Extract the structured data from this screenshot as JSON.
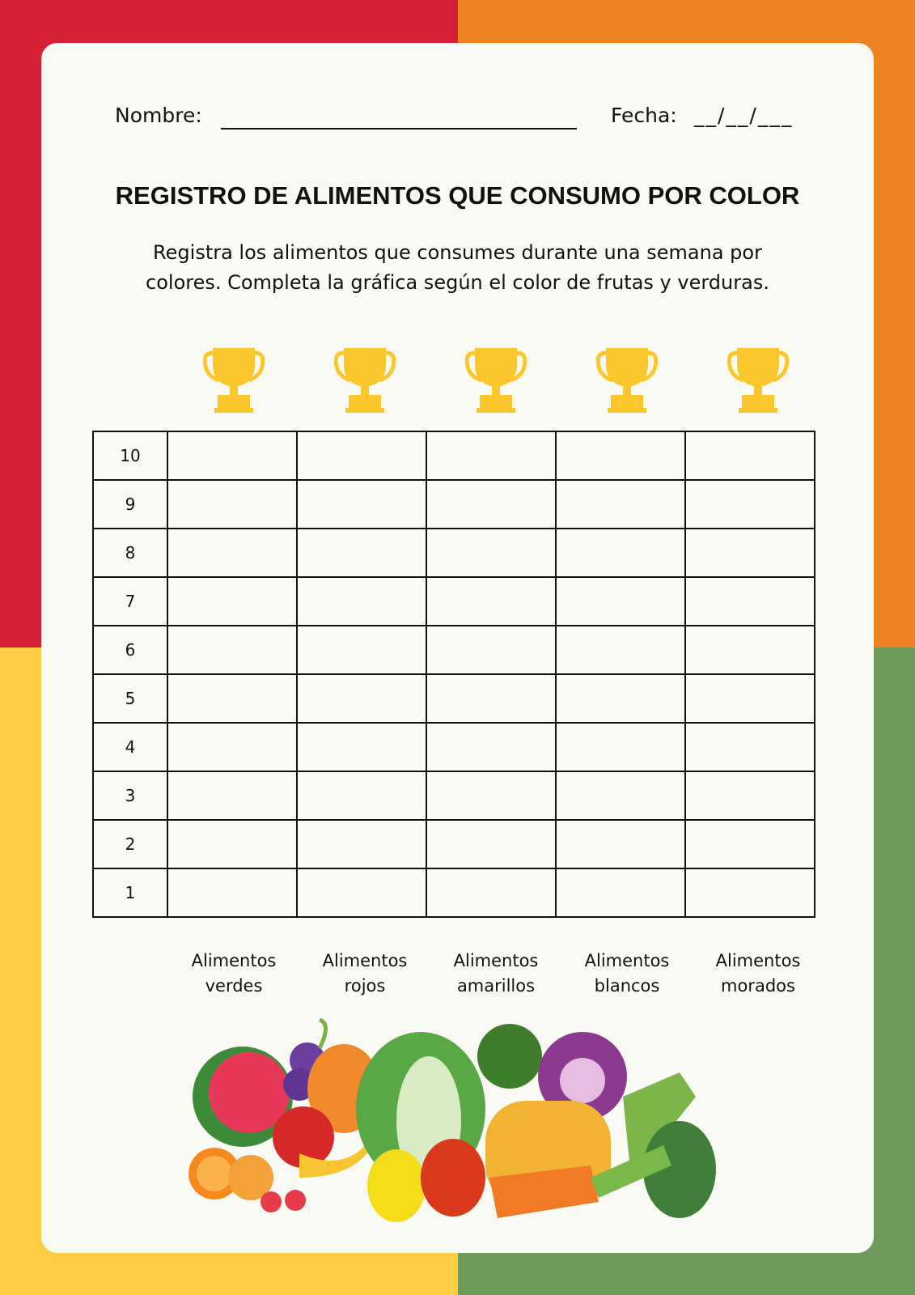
{
  "header": {
    "name_label": "Nombre:",
    "date_label": "Fecha:",
    "date_blank": "__/__/___"
  },
  "title": "REGISTRO DE ALIMENTOS QUE CONSUMO POR COLOR",
  "instructions": [
    "Registra los alimentos que consumes durante una semana por",
    "colores. Completa la gráfica según el color de frutas y verduras."
  ],
  "table": {
    "rows": [
      10,
      9,
      8,
      7,
      6,
      5,
      4,
      3,
      2,
      1
    ],
    "columns": [
      [
        "Alimentos",
        "verdes"
      ],
      [
        "Alimentos",
        "rojos"
      ],
      [
        "Alimentos",
        "amarillos"
      ],
      [
        "Alimentos",
        "blancos"
      ],
      [
        "Alimentos",
        "morados"
      ]
    ]
  }
}
